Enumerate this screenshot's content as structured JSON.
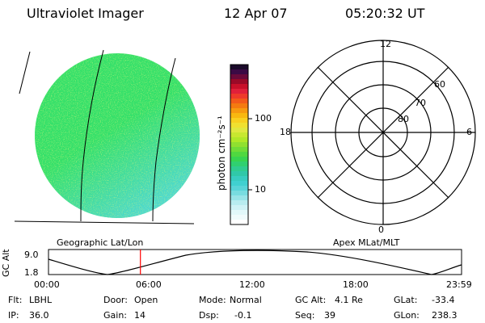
{
  "header": {
    "title": "Ultraviolet Imager",
    "date": "12 Apr 07",
    "time": "05:20:32 UT"
  },
  "colorbar": {
    "unit_label": "photon cm⁻²s⁻¹",
    "ticks": [
      "100",
      "10"
    ]
  },
  "polar_plot": {
    "clock_labels": {
      "top": "12",
      "left": "18",
      "right": "6",
      "bottom": "0"
    },
    "lat_labels": [
      "60",
      "70",
      "80"
    ]
  },
  "panels": {
    "left_caption": "Geographic Lat/Lon",
    "right_caption": "Apex MLat/MLT"
  },
  "altitude_plot": {
    "ylabel": "GC Alt",
    "ymax": "9.0",
    "ymin": "1.8",
    "x_ticks": [
      "00:00",
      "06:00",
      "12:00",
      "18:00",
      "23:59"
    ],
    "current_time_hours": 5.34,
    "marker_color": "#ff0000"
  },
  "info": {
    "flt": {
      "label": "Flt:",
      "value": "LBHL"
    },
    "ip": {
      "label": "IP:",
      "value": "36.0"
    },
    "door": {
      "label": "Door:",
      "value": "Open"
    },
    "gain": {
      "label": "Gain:",
      "value": "14"
    },
    "mode": {
      "label": "Mode:",
      "value": "Normal"
    },
    "dsp": {
      "label": "Dsp:",
      "value": "-0.1"
    },
    "gcalt": {
      "label": "GC Alt:",
      "value": "4.1 Re"
    },
    "seq": {
      "label": "Seq:",
      "value": "39"
    },
    "glat": {
      "label": "GLat:",
      "value": "-33.4"
    },
    "glon": {
      "label": "GLon:",
      "value": "238.3"
    }
  },
  "colors": {
    "image_base": "#33e06a",
    "image_low": "#4fd8d8",
    "image_speck": "#b8e830"
  }
}
